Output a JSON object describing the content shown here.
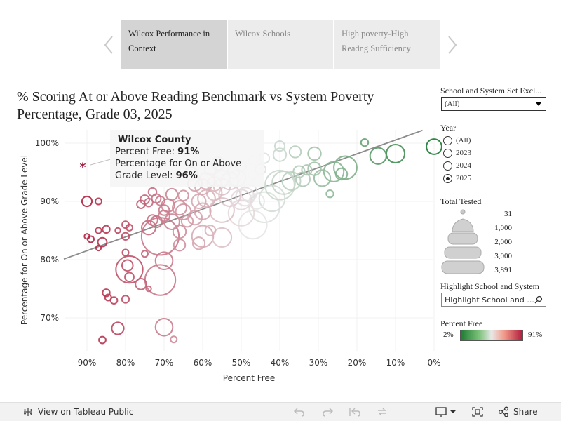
{
  "story": {
    "tabs": [
      {
        "label": "Wilcox Performance in Context",
        "active": true
      },
      {
        "label": "Wilcox Schools",
        "active": false
      },
      {
        "label": "High poverty-High Readng Sufficiency",
        "active": false
      }
    ]
  },
  "title": "% Scoring At or Above Reading Benchmark vs System Poverty Percentage, Grade 03, 2025",
  "tooltip": {
    "name": "Wilcox County",
    "line1_label": "Percent Free: ",
    "line1_value": "91%",
    "line2_label": "Percentage for On or Above Grade Level: ",
    "line2_value": "96%"
  },
  "filters": {
    "school_set": {
      "label": "School and System Set Excl...",
      "value": "(All)"
    },
    "year": {
      "label": "Year",
      "options": [
        {
          "label": "(All)",
          "checked": false
        },
        {
          "label": "2023",
          "checked": false
        },
        {
          "label": "2024",
          "checked": false
        },
        {
          "label": "2025",
          "checked": true
        }
      ]
    },
    "total_tested": {
      "label": "Total Tested",
      "entries": [
        "31",
        "1,000",
        "2,000",
        "3,000",
        "3,891"
      ]
    },
    "highlight": {
      "label": "Highlight School and System",
      "placeholder": "Highlight School and ..."
    },
    "percent_free": {
      "label": "Percent Free",
      "min": "2%",
      "max": "91%"
    }
  },
  "colors": {
    "low": "#1e7b33",
    "mid": "#e8e8e8",
    "high": "#b01c3c",
    "trend": "#8c8c8c",
    "marker": "#a0163b"
  },
  "chart_data": {
    "type": "scatter",
    "xlabel": "Percent Free",
    "ylabel": "Percentage for On or Above Grade Level",
    "x_reversed": true,
    "xlim": [
      96,
      -2
    ],
    "ylim": [
      64,
      102
    ],
    "x_ticks": [
      "90%",
      "80%",
      "70%",
      "60%",
      "50%",
      "40%",
      "30%",
      "20%",
      "10%",
      "0%"
    ],
    "x_tick_values": [
      90,
      80,
      70,
      60,
      50,
      40,
      30,
      20,
      10,
      0
    ],
    "y_ticks": [
      "70%",
      "80%",
      "90%",
      "100%"
    ],
    "y_tick_values": [
      70,
      80,
      90,
      100
    ],
    "trend_line": [
      [
        96,
        80.1
      ],
      [
        3,
        102.2
      ]
    ],
    "highlight_point": {
      "x": 91,
      "y": 96,
      "name": "Wilcox County"
    },
    "points": [
      {
        "x": 90,
        "y": 90,
        "n": 150
      },
      {
        "x": 87,
        "y": 90,
        "n": 60
      },
      {
        "x": 90,
        "y": 84,
        "n": 40
      },
      {
        "x": 89,
        "y": 83.5,
        "n": 60
      },
      {
        "x": 87,
        "y": 85,
        "n": 50
      },
      {
        "x": 85,
        "y": 85.2,
        "n": 80
      },
      {
        "x": 86,
        "y": 83,
        "n": 120
      },
      {
        "x": 87,
        "y": 82,
        "n": 40
      },
      {
        "x": 82,
        "y": 85,
        "n": 40
      },
      {
        "x": 80,
        "y": 86,
        "n": 70
      },
      {
        "x": 79,
        "y": 85.5,
        "n": 60
      },
      {
        "x": 80,
        "y": 84,
        "n": 80
      },
      {
        "x": 80,
        "y": 81.2,
        "n": 60
      },
      {
        "x": 79,
        "y": 78.3,
        "n": 1100
      },
      {
        "x": 79,
        "y": 77,
        "n": 120
      },
      {
        "x": 79.5,
        "y": 79,
        "n": 180
      },
      {
        "x": 75,
        "y": 81,
        "n": 60
      },
      {
        "x": 85,
        "y": 74.3,
        "n": 80
      },
      {
        "x": 84.5,
        "y": 73.5,
        "n": 60
      },
      {
        "x": 83,
        "y": 73,
        "n": 70
      },
      {
        "x": 80,
        "y": 73.2,
        "n": 80
      },
      {
        "x": 82,
        "y": 68.2,
        "n": 220
      },
      {
        "x": 86,
        "y": 66.2,
        "n": 70
      },
      {
        "x": 70,
        "y": 68.4,
        "n": 450
      },
      {
        "x": 67.5,
        "y": 66.3,
        "n": 60
      },
      {
        "x": 76,
        "y": 75.8,
        "n": 180
      },
      {
        "x": 74,
        "y": 75,
        "n": 40
      },
      {
        "x": 71,
        "y": 76.5,
        "n": 1400
      },
      {
        "x": 70,
        "y": 79.8,
        "n": 450
      },
      {
        "x": 71,
        "y": 84,
        "n": 2100
      },
      {
        "x": 73,
        "y": 86.8,
        "n": 160
      },
      {
        "x": 74,
        "y": 85.5,
        "n": 300
      },
      {
        "x": 72,
        "y": 86.5,
        "n": 200
      },
      {
        "x": 70,
        "y": 87.5,
        "n": 180
      },
      {
        "x": 68,
        "y": 86.5,
        "n": 350
      },
      {
        "x": 66,
        "y": 84.8,
        "n": 250
      },
      {
        "x": 66,
        "y": 82.5,
        "n": 200
      },
      {
        "x": 61,
        "y": 82.8,
        "n": 220
      },
      {
        "x": 60,
        "y": 84,
        "n": 700
      },
      {
        "x": 58,
        "y": 85,
        "n": 160
      },
      {
        "x": 55,
        "y": 83.8,
        "n": 550
      },
      {
        "x": 47,
        "y": 86,
        "n": 1200
      },
      {
        "x": 50,
        "y": 88,
        "n": 1000
      },
      {
        "x": 55,
        "y": 88.5,
        "n": 900
      },
      {
        "x": 60,
        "y": 88.3,
        "n": 400
      },
      {
        "x": 62,
        "y": 87.2,
        "n": 300
      },
      {
        "x": 64,
        "y": 86.6,
        "n": 200
      },
      {
        "x": 65,
        "y": 88.2,
        "n": 350
      },
      {
        "x": 66,
        "y": 88.9,
        "n": 300
      },
      {
        "x": 69,
        "y": 89.3,
        "n": 250
      },
      {
        "x": 70,
        "y": 88.5,
        "n": 160
      },
      {
        "x": 71,
        "y": 90.1,
        "n": 120
      },
      {
        "x": 72,
        "y": 90.5,
        "n": 120
      },
      {
        "x": 74,
        "y": 89.8,
        "n": 100
      },
      {
        "x": 75,
        "y": 90.3,
        "n": 120
      },
      {
        "x": 76,
        "y": 89.5,
        "n": 100
      },
      {
        "x": 73,
        "y": 91.6,
        "n": 100
      },
      {
        "x": 68,
        "y": 91.2,
        "n": 200
      },
      {
        "x": 65,
        "y": 91,
        "n": 160
      },
      {
        "x": 61,
        "y": 90,
        "n": 300
      },
      {
        "x": 59,
        "y": 90.5,
        "n": 450
      },
      {
        "x": 57,
        "y": 91.5,
        "n": 350
      },
      {
        "x": 55,
        "y": 92.5,
        "n": 400
      },
      {
        "x": 53,
        "y": 91,
        "n": 700
      },
      {
        "x": 50,
        "y": 90.3,
        "n": 600
      },
      {
        "x": 49,
        "y": 90.8,
        "n": 500
      },
      {
        "x": 48,
        "y": 91.5,
        "n": 400
      },
      {
        "x": 46,
        "y": 90,
        "n": 350
      },
      {
        "x": 62,
        "y": 93,
        "n": 300
      },
      {
        "x": 60,
        "y": 92.5,
        "n": 350
      },
      {
        "x": 59,
        "y": 93.5,
        "n": 400
      },
      {
        "x": 57,
        "y": 93,
        "n": 300
      },
      {
        "x": 55,
        "y": 94,
        "n": 350
      },
      {
        "x": 53,
        "y": 93.5,
        "n": 450
      },
      {
        "x": 51,
        "y": 94,
        "n": 400
      },
      {
        "x": 63,
        "y": 94.8,
        "n": 250
      },
      {
        "x": 58,
        "y": 95.5,
        "n": 200
      },
      {
        "x": 56,
        "y": 96.5,
        "n": 250
      },
      {
        "x": 52,
        "y": 95,
        "n": 200
      },
      {
        "x": 50,
        "y": 96,
        "n": 150
      },
      {
        "x": 47,
        "y": 94.6,
        "n": 120
      },
      {
        "x": 45,
        "y": 95.5,
        "n": 160
      },
      {
        "x": 44,
        "y": 89,
        "n": 1400
      },
      {
        "x": 42,
        "y": 90.5,
        "n": 1000
      },
      {
        "x": 40,
        "y": 92.8,
        "n": 1300
      },
      {
        "x": 39,
        "y": 93.2,
        "n": 800
      },
      {
        "x": 37,
        "y": 93.5,
        "n": 500
      },
      {
        "x": 35,
        "y": 95.1,
        "n": 200
      },
      {
        "x": 34,
        "y": 93.8,
        "n": 300
      },
      {
        "x": 33,
        "y": 95.4,
        "n": 150
      },
      {
        "x": 31,
        "y": 95.6,
        "n": 250
      },
      {
        "x": 29,
        "y": 94,
        "n": 400
      },
      {
        "x": 26,
        "y": 95.1,
        "n": 600
      },
      {
        "x": 27,
        "y": 91.3,
        "n": 80
      },
      {
        "x": 23,
        "y": 95.8,
        "n": 800
      },
      {
        "x": 24,
        "y": 94.7,
        "n": 200
      },
      {
        "x": 31,
        "y": 98.2,
        "n": 250
      },
      {
        "x": 36,
        "y": 98.5,
        "n": 200
      },
      {
        "x": 40,
        "y": 98,
        "n": 250
      },
      {
        "x": 40,
        "y": 99.5,
        "n": 150
      },
      {
        "x": 44,
        "y": 97.4,
        "n": 150
      },
      {
        "x": 47,
        "y": 97.1,
        "n": 120
      },
      {
        "x": 18,
        "y": 100.1,
        "n": 80
      },
      {
        "x": 14.5,
        "y": 97.8,
        "n": 400
      },
      {
        "x": 10,
        "y": 98.2,
        "n": 500
      },
      {
        "x": 0,
        "y": 99.4,
        "n": 350
      }
    ]
  }
}
